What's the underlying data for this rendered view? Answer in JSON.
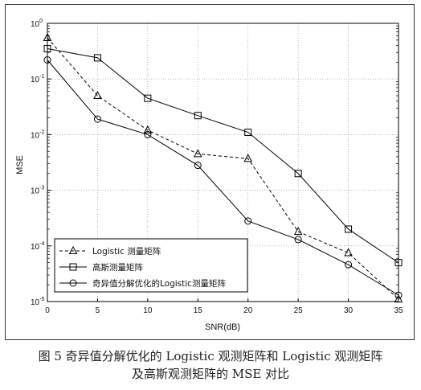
{
  "chart_data": {
    "type": "line",
    "xlabel": "SNR(dB)",
    "ylabel": "MSE",
    "y_scale": "log",
    "xlim": [
      0,
      35
    ],
    "ylim": [
      1e-05,
      1
    ],
    "grid": true,
    "legend_position": "bottom-left",
    "x_ticks": [
      "0",
      "5",
      "10",
      "15",
      "20",
      "25",
      "30",
      "35"
    ],
    "y_ticks": [
      {
        "base": "10",
        "exp": "0",
        "value": 1
      },
      {
        "base": "10",
        "exp": "-1",
        "value": 0.1
      },
      {
        "base": "10",
        "exp": "-2",
        "value": 0.01
      },
      {
        "base": "10",
        "exp": "-3",
        "value": 0.001
      },
      {
        "base": "10",
        "exp": "-4",
        "value": 0.0001
      },
      {
        "base": "10",
        "exp": "-5",
        "value": 1e-05
      }
    ],
    "x": [
      0,
      5,
      10,
      15,
      20,
      25,
      30,
      35
    ],
    "series": [
      {
        "name": "Logistic 测量矩阵",
        "marker": "triangle",
        "dash": "4,3",
        "values": [
          0.55,
          0.05,
          0.012,
          0.0045,
          0.0037,
          0.00018,
          7.5e-05,
          1.1e-05
        ]
      },
      {
        "name": "高斯测量矩阵",
        "marker": "square",
        "dash": "",
        "values": [
          0.35,
          0.24,
          0.045,
          0.022,
          0.011,
          0.002,
          0.0002,
          5e-05
        ]
      },
      {
        "name": "奇异值分解优化的Logistic测量矩阵",
        "marker": "circle",
        "dash": "",
        "values": [
          0.22,
          0.019,
          0.01,
          0.0028,
          0.00028,
          0.00013,
          4.6e-05,
          1.3e-05
        ]
      }
    ],
    "legend_labels": [
      "Logistic    测量矩阵",
      "高斯测量矩阵",
      "奇异值分解优化的Logistic测量矩阵"
    ]
  },
  "caption": {
    "line1": "图 5 奇异值分解优化的 Logistic 观测矩阵和 Logistic 观测矩阵",
    "line2": "及高斯观测矩阵的 MSE 对比"
  }
}
